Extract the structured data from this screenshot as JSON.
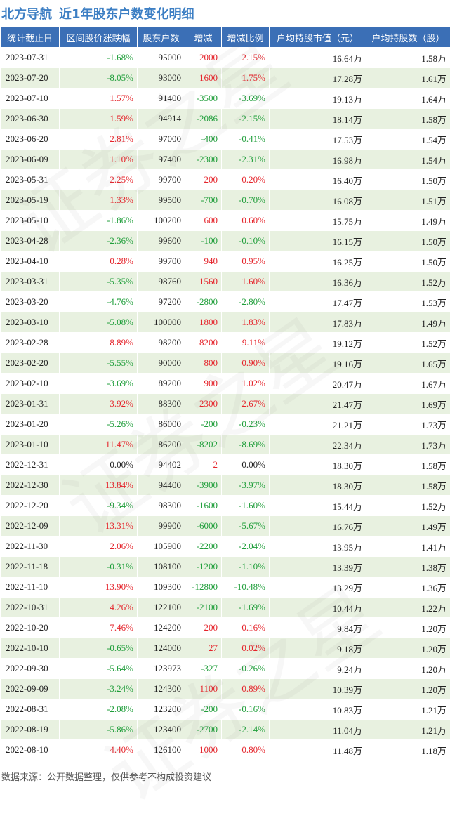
{
  "header": {
    "company": "北方导航",
    "subtitle": "近1年股东户数变化明细"
  },
  "table": {
    "columns": [
      "统计截止日",
      "区间股价涨跌幅",
      "股东户数",
      "增减",
      "增减比例",
      "户均持股市值（元）",
      "户均持股数（股）"
    ],
    "rows": [
      {
        "date": "2023-07-31",
        "change_pct": "-1.68%",
        "holders": "95000",
        "delta": "2000",
        "delta_pct": "2.15%",
        "avg_value": "16.64万",
        "avg_shares": "1.58万"
      },
      {
        "date": "2023-07-20",
        "change_pct": "-8.05%",
        "holders": "93000",
        "delta": "1600",
        "delta_pct": "1.75%",
        "avg_value": "17.28万",
        "avg_shares": "1.61万"
      },
      {
        "date": "2023-07-10",
        "change_pct": "1.57%",
        "holders": "91400",
        "delta": "-3500",
        "delta_pct": "-3.69%",
        "avg_value": "19.13万",
        "avg_shares": "1.64万"
      },
      {
        "date": "2023-06-30",
        "change_pct": "1.59%",
        "holders": "94914",
        "delta": "-2086",
        "delta_pct": "-2.15%",
        "avg_value": "18.14万",
        "avg_shares": "1.58万"
      },
      {
        "date": "2023-06-20",
        "change_pct": "2.81%",
        "holders": "97000",
        "delta": "-400",
        "delta_pct": "-0.41%",
        "avg_value": "17.53万",
        "avg_shares": "1.54万"
      },
      {
        "date": "2023-06-09",
        "change_pct": "1.10%",
        "holders": "97400",
        "delta": "-2300",
        "delta_pct": "-2.31%",
        "avg_value": "16.98万",
        "avg_shares": "1.54万"
      },
      {
        "date": "2023-05-31",
        "change_pct": "2.25%",
        "holders": "99700",
        "delta": "200",
        "delta_pct": "0.20%",
        "avg_value": "16.40万",
        "avg_shares": "1.50万"
      },
      {
        "date": "2023-05-19",
        "change_pct": "1.33%",
        "holders": "99500",
        "delta": "-700",
        "delta_pct": "-0.70%",
        "avg_value": "16.08万",
        "avg_shares": "1.51万"
      },
      {
        "date": "2023-05-10",
        "change_pct": "-1.86%",
        "holders": "100200",
        "delta": "600",
        "delta_pct": "0.60%",
        "avg_value": "15.75万",
        "avg_shares": "1.49万"
      },
      {
        "date": "2023-04-28",
        "change_pct": "-2.36%",
        "holders": "99600",
        "delta": "-100",
        "delta_pct": "-0.10%",
        "avg_value": "16.15万",
        "avg_shares": "1.50万"
      },
      {
        "date": "2023-04-10",
        "change_pct": "0.28%",
        "holders": "99700",
        "delta": "940",
        "delta_pct": "0.95%",
        "avg_value": "16.25万",
        "avg_shares": "1.50万"
      },
      {
        "date": "2023-03-31",
        "change_pct": "-5.35%",
        "holders": "98760",
        "delta": "1560",
        "delta_pct": "1.60%",
        "avg_value": "16.36万",
        "avg_shares": "1.52万"
      },
      {
        "date": "2023-03-20",
        "change_pct": "-4.76%",
        "holders": "97200",
        "delta": "-2800",
        "delta_pct": "-2.80%",
        "avg_value": "17.47万",
        "avg_shares": "1.53万"
      },
      {
        "date": "2023-03-10",
        "change_pct": "-5.08%",
        "holders": "100000",
        "delta": "1800",
        "delta_pct": "1.83%",
        "avg_value": "17.83万",
        "avg_shares": "1.49万"
      },
      {
        "date": "2023-02-28",
        "change_pct": "8.89%",
        "holders": "98200",
        "delta": "8200",
        "delta_pct": "9.11%",
        "avg_value": "19.12万",
        "avg_shares": "1.52万"
      },
      {
        "date": "2023-02-20",
        "change_pct": "-5.55%",
        "holders": "90000",
        "delta": "800",
        "delta_pct": "0.90%",
        "avg_value": "19.16万",
        "avg_shares": "1.65万"
      },
      {
        "date": "2023-02-10",
        "change_pct": "-3.69%",
        "holders": "89200",
        "delta": "900",
        "delta_pct": "1.02%",
        "avg_value": "20.47万",
        "avg_shares": "1.67万"
      },
      {
        "date": "2023-01-31",
        "change_pct": "3.92%",
        "holders": "88300",
        "delta": "2300",
        "delta_pct": "2.67%",
        "avg_value": "21.47万",
        "avg_shares": "1.69万"
      },
      {
        "date": "2023-01-20",
        "change_pct": "-5.26%",
        "holders": "86000",
        "delta": "-200",
        "delta_pct": "-0.23%",
        "avg_value": "21.21万",
        "avg_shares": "1.73万"
      },
      {
        "date": "2023-01-10",
        "change_pct": "11.47%",
        "holders": "86200",
        "delta": "-8202",
        "delta_pct": "-8.69%",
        "avg_value": "22.34万",
        "avg_shares": "1.73万"
      },
      {
        "date": "2022-12-31",
        "change_pct": "0.00%",
        "holders": "94402",
        "delta": "2",
        "delta_pct": "0.00%",
        "avg_value": "18.30万",
        "avg_shares": "1.58万"
      },
      {
        "date": "2022-12-30",
        "change_pct": "13.84%",
        "holders": "94400",
        "delta": "-3900",
        "delta_pct": "-3.97%",
        "avg_value": "18.30万",
        "avg_shares": "1.58万"
      },
      {
        "date": "2022-12-20",
        "change_pct": "-9.34%",
        "holders": "98300",
        "delta": "-1600",
        "delta_pct": "-1.60%",
        "avg_value": "15.44万",
        "avg_shares": "1.52万"
      },
      {
        "date": "2022-12-09",
        "change_pct": "13.31%",
        "holders": "99900",
        "delta": "-6000",
        "delta_pct": "-5.67%",
        "avg_value": "16.76万",
        "avg_shares": "1.49万"
      },
      {
        "date": "2022-11-30",
        "change_pct": "2.06%",
        "holders": "105900",
        "delta": "-2200",
        "delta_pct": "-2.04%",
        "avg_value": "13.95万",
        "avg_shares": "1.41万"
      },
      {
        "date": "2022-11-18",
        "change_pct": "-0.31%",
        "holders": "108100",
        "delta": "-1200",
        "delta_pct": "-1.10%",
        "avg_value": "13.39万",
        "avg_shares": "1.38万"
      },
      {
        "date": "2022-11-10",
        "change_pct": "13.90%",
        "holders": "109300",
        "delta": "-12800",
        "delta_pct": "-10.48%",
        "avg_value": "13.29万",
        "avg_shares": "1.36万"
      },
      {
        "date": "2022-10-31",
        "change_pct": "4.26%",
        "holders": "122100",
        "delta": "-2100",
        "delta_pct": "-1.69%",
        "avg_value": "10.44万",
        "avg_shares": "1.22万"
      },
      {
        "date": "2022-10-20",
        "change_pct": "7.46%",
        "holders": "124200",
        "delta": "200",
        "delta_pct": "0.16%",
        "avg_value": "9.84万",
        "avg_shares": "1.20万"
      },
      {
        "date": "2022-10-10",
        "change_pct": "-0.65%",
        "holders": "124000",
        "delta": "27",
        "delta_pct": "0.02%",
        "avg_value": "9.18万",
        "avg_shares": "1.20万"
      },
      {
        "date": "2022-09-30",
        "change_pct": "-5.64%",
        "holders": "123973",
        "delta": "-327",
        "delta_pct": "-0.26%",
        "avg_value": "9.24万",
        "avg_shares": "1.20万"
      },
      {
        "date": "2022-09-09",
        "change_pct": "-3.24%",
        "holders": "124300",
        "delta": "1100",
        "delta_pct": "0.89%",
        "avg_value": "10.39万",
        "avg_shares": "1.20万"
      },
      {
        "date": "2022-08-31",
        "change_pct": "-2.08%",
        "holders": "123200",
        "delta": "-200",
        "delta_pct": "-0.16%",
        "avg_value": "10.83万",
        "avg_shares": "1.21万"
      },
      {
        "date": "2022-08-19",
        "change_pct": "-5.86%",
        "holders": "123400",
        "delta": "-2700",
        "delta_pct": "-2.14%",
        "avg_value": "11.04万",
        "avg_shares": "1.21万"
      },
      {
        "date": "2022-08-10",
        "change_pct": "4.40%",
        "holders": "126100",
        "delta": "1000",
        "delta_pct": "0.80%",
        "avg_value": "11.48万",
        "avg_shares": "1.18万"
      }
    ]
  },
  "footer": {
    "source": "数据来源：公开数据整理，仅供参考不构成投资建议"
  },
  "colors": {
    "header_bg": "#3b6fb6",
    "title": "#3d7fc4",
    "stripe": "#e8f1e0",
    "up": "#e5242b",
    "down": "#1f9e3a"
  }
}
